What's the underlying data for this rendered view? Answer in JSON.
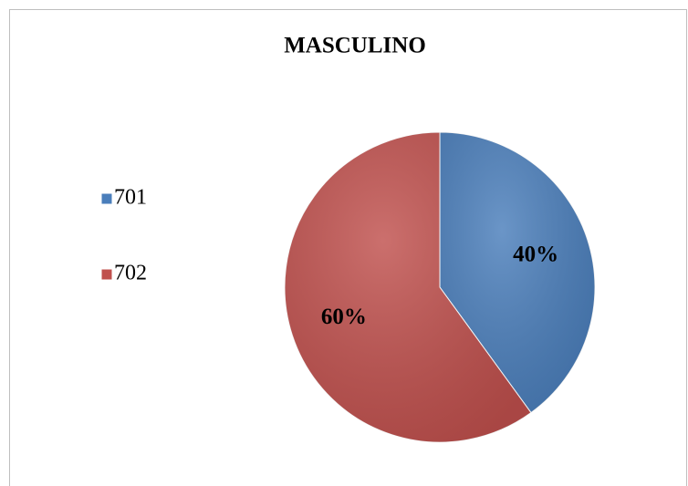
{
  "chart_data": {
    "type": "pie",
    "title": "MASCULINO",
    "categories": [
      "701",
      "702"
    ],
    "values": [
      40,
      60
    ],
    "value_labels": [
      "40%",
      "60%"
    ],
    "colors": [
      "#4a7ebb",
      "#c0504d"
    ],
    "legend": "left"
  }
}
